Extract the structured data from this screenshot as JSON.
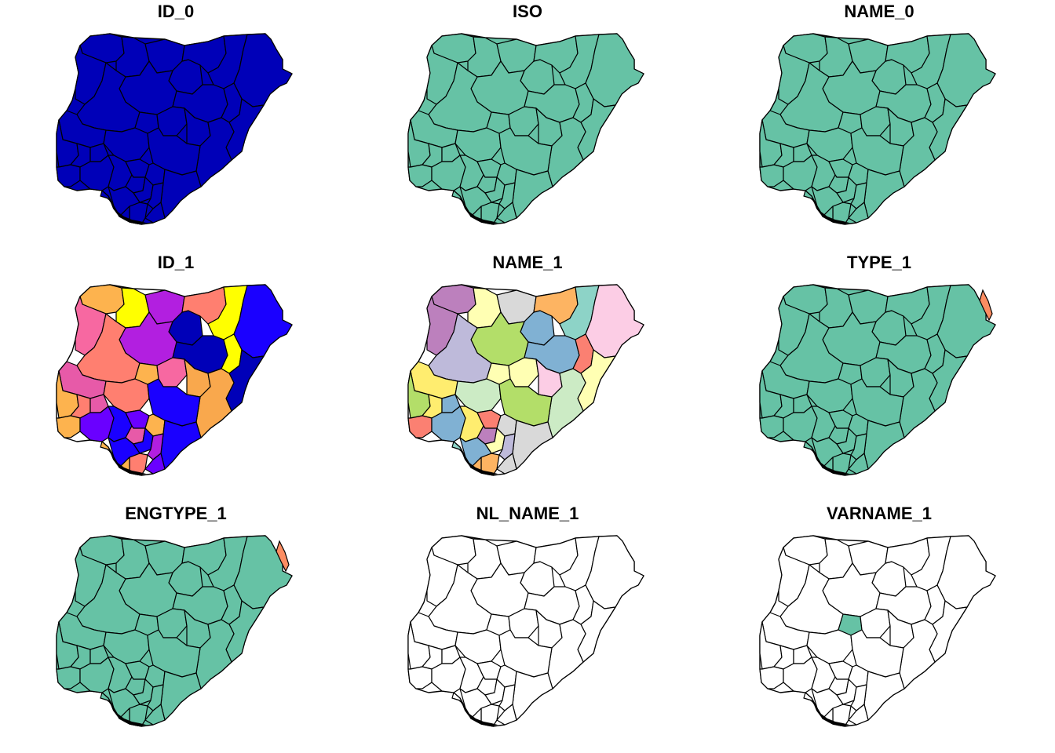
{
  "figure": {
    "panels": [
      {
        "title": "ID_0",
        "fill_mode": "single",
        "fill": "#0000B8"
      },
      {
        "title": "ISO",
        "fill_mode": "single",
        "fill": "#66C2A5"
      },
      {
        "title": "NAME_0",
        "fill_mode": "single",
        "fill": "#66C2A5"
      },
      {
        "title": "ID_1",
        "fill_mode": "palette",
        "palette": [
          "#F768A1",
          "#FDB34E",
          "#FF7F70",
          "#FFFF00",
          "#B21FE0",
          "#6A00FF",
          "#1A00FF",
          "#0000B8",
          "#E75AA8",
          "#F9A84D"
        ]
      },
      {
        "title": "NAME_1",
        "fill_mode": "palette",
        "palette": [
          "#8DD3C7",
          "#FFFFB3",
          "#BEBADA",
          "#FB8072",
          "#80B1D3",
          "#FDB462",
          "#B3DE69",
          "#FCCDE5",
          "#D9D9D9",
          "#BC80BD",
          "#CCEBC5",
          "#FFED6F"
        ]
      },
      {
        "title": "TYPE_1",
        "fill_mode": "single_with_highlight",
        "fill": "#66C2A5",
        "highlight": "#FC8D62"
      },
      {
        "title": "ENGTYPE_1",
        "fill_mode": "single_with_highlight",
        "fill": "#66C2A5",
        "highlight": "#FC8D62"
      },
      {
        "title": "NL_NAME_1",
        "fill_mode": "single",
        "fill": "#FFFFFF"
      },
      {
        "title": "VARNAME_1",
        "fill_mode": "single_with_center",
        "fill": "#FFFFFF",
        "highlight": "#66C2A5"
      }
    ],
    "stroke_color": "#000000"
  }
}
